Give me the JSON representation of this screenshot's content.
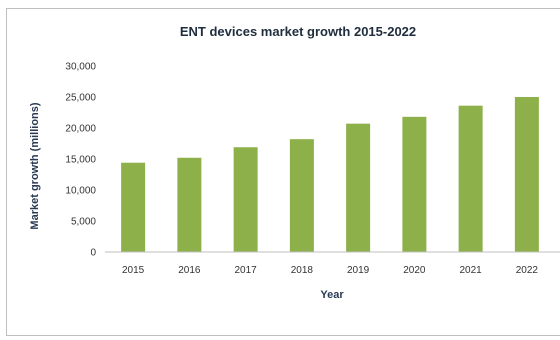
{
  "chart_data": {
    "type": "bar",
    "title": "ENT devices market growth 2015-2022",
    "xlabel": "Year",
    "ylabel": "Market growth (millions)",
    "categories": [
      "2015",
      "2016",
      "2017",
      "2018",
      "2019",
      "2020",
      "2021",
      "2022"
    ],
    "values": [
      14400,
      15200,
      16900,
      18200,
      20700,
      21800,
      23600,
      25000
    ],
    "ylim": [
      0,
      30000
    ],
    "yticks": [
      "0",
      "5,000",
      "10,000",
      "15,000",
      "20,000",
      "25,000",
      "30,000"
    ],
    "bar_color": "#8db04a",
    "grid": false,
    "legend": "none"
  }
}
